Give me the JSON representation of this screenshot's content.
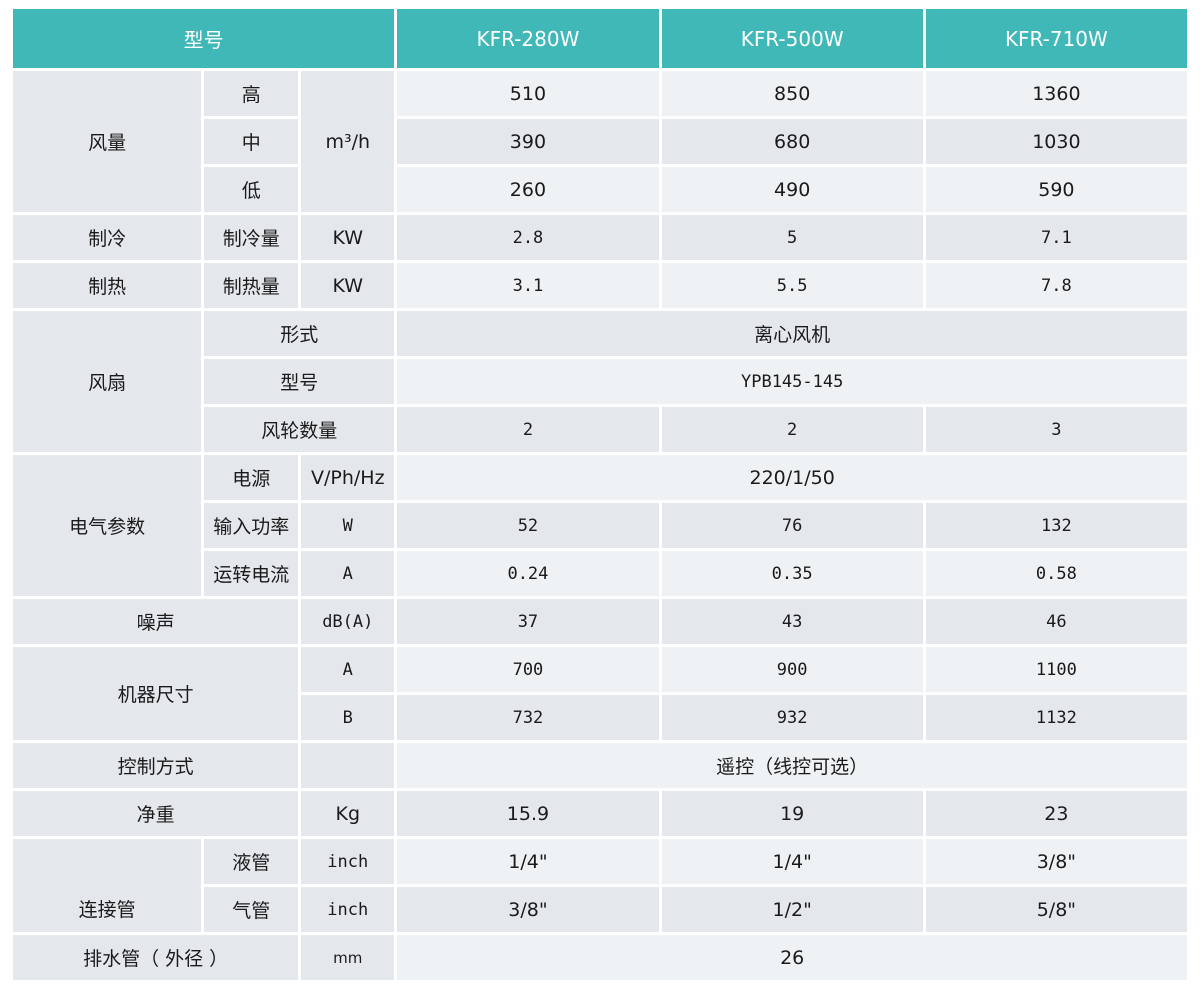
{
  "header": {
    "label": "型号",
    "models": [
      "KFR-280W",
      "KFR-500W",
      "KFR-710W"
    ]
  },
  "airflow": {
    "label": "风量",
    "unit": "m³/h",
    "levels": [
      {
        "label": "高",
        "values": [
          "510",
          "850",
          "1360"
        ]
      },
      {
        "label": "中",
        "values": [
          "390",
          "680",
          "1030"
        ]
      },
      {
        "label": "低",
        "values": [
          "260",
          "490",
          "590"
        ]
      }
    ]
  },
  "cooling": {
    "label": "制冷",
    "sub": "制冷量",
    "unit": "KW",
    "values": [
      "2.8",
      "5",
      "7.1"
    ]
  },
  "heating": {
    "label": "制热",
    "sub": "制热量",
    "unit": "KW",
    "values": [
      "3.1",
      "5.5",
      "7.8"
    ]
  },
  "fan": {
    "label": "风扇",
    "type_label": "形式",
    "type_value": "离心风机",
    "model_label": "型号",
    "model_value": "YPB145-145",
    "wheels_label": "风轮数量",
    "wheels": [
      "2",
      "2",
      "3"
    ]
  },
  "electrical": {
    "label": "电气参数",
    "power": {
      "label": "电源",
      "unit": "V/Ph/Hz",
      "value": "220/1/50"
    },
    "input": {
      "label": "输入功率",
      "unit": "W",
      "values": [
        "52",
        "76",
        "132"
      ]
    },
    "current": {
      "label": "运转电流",
      "unit": "A",
      "values": [
        "0.24",
        "0.35",
        "0.58"
      ]
    }
  },
  "noise": {
    "label": "噪声",
    "unit": "dB(A)",
    "values": [
      "37",
      "43",
      "46"
    ]
  },
  "size": {
    "label": "机器尺寸",
    "a": {
      "label": "A",
      "values": [
        "700",
        "900",
        "1100"
      ]
    },
    "b": {
      "label": "B",
      "values": [
        "732",
        "932",
        "1132"
      ]
    }
  },
  "control": {
    "label": "控制方式",
    "value": "遥控（线控可选）"
  },
  "weight": {
    "label": "净重",
    "unit": "Kg",
    "values": [
      "15.9",
      "19",
      "23"
    ]
  },
  "pipes": {
    "label": "连接管",
    "liquid": {
      "label": "液管",
      "unit": "inch",
      "values": [
        "1/4\"",
        "1/4\"",
        "3/8\""
      ]
    },
    "gas": {
      "label": "气管",
      "unit": "inch",
      "values": [
        "3/8\"",
        "1/2\"",
        "5/8\""
      ]
    }
  },
  "drain": {
    "label": "排水管（ 外径 ）",
    "unit": "mm",
    "value": "26"
  }
}
